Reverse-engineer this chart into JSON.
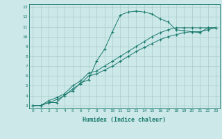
{
  "xlabel": "Humidex (Indice chaleur)",
  "ylabel": "",
  "xlim": [
    -0.5,
    23.5
  ],
  "ylim": [
    2.7,
    13.3
  ],
  "xticks": [
    0,
    1,
    2,
    3,
    4,
    5,
    6,
    7,
    8,
    9,
    10,
    11,
    12,
    13,
    14,
    15,
    16,
    17,
    18,
    19,
    20,
    21,
    22,
    23
  ],
  "yticks": [
    3,
    4,
    5,
    6,
    7,
    8,
    9,
    10,
    11,
    12,
    13
  ],
  "bg_color": "#cce8e8",
  "grid_color": "#aacccc",
  "line_color": "#1a7a6e",
  "series": {
    "line1": [
      3.0,
      3.0,
      3.3,
      3.3,
      4.1,
      4.5,
      5.3,
      5.6,
      7.5,
      8.7,
      10.5,
      12.2,
      12.5,
      12.6,
      12.5,
      12.3,
      11.8,
      11.5,
      10.7,
      10.6,
      10.5,
      10.4,
      10.9,
      10.9
    ],
    "line2": [
      3.0,
      3.0,
      3.5,
      3.8,
      4.2,
      5.0,
      5.5,
      6.3,
      6.5,
      7.0,
      7.5,
      8.0,
      8.5,
      9.0,
      9.5,
      10.0,
      10.4,
      10.7,
      10.9,
      10.9,
      10.9,
      10.9,
      10.9,
      10.9
    ],
    "line3": [
      3.0,
      3.0,
      3.3,
      3.6,
      4.0,
      4.7,
      5.2,
      6.0,
      6.2,
      6.6,
      7.0,
      7.5,
      8.0,
      8.5,
      8.9,
      9.3,
      9.7,
      10.0,
      10.2,
      10.4,
      10.5,
      10.5,
      10.7,
      10.9
    ]
  }
}
